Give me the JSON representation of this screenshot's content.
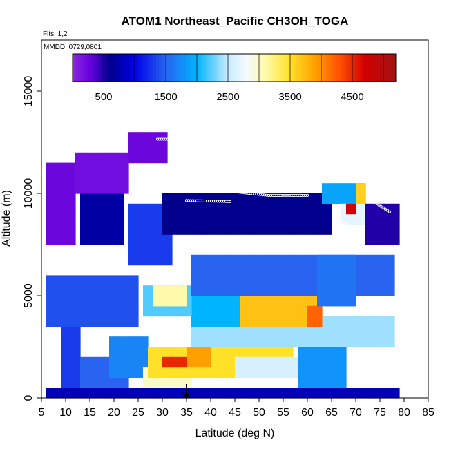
{
  "chart_data": {
    "type": "heatmap",
    "title": "ATOM1 Northeast_Pacific CH3OH_TOGA",
    "subtitle_flights": "Flts: 1,2",
    "subtitle_dates": "MMDD: 0729,0801",
    "xlabel": "Latitude (deg N)",
    "ylabel": "Altitude (m)",
    "xlim": [
      5,
      85
    ],
    "ylim": [
      0,
      17500
    ],
    "x_ticks": [
      5,
      10,
      15,
      20,
      25,
      30,
      35,
      40,
      45,
      50,
      55,
      60,
      65,
      70,
      75,
      80,
      85
    ],
    "y_ticks": [
      0,
      5000,
      10000,
      15000
    ],
    "colorbar": {
      "range": [
        0,
        5200
      ],
      "tick_values": [
        500,
        1500,
        2500,
        3500,
        4500
      ],
      "tick_labels": [
        "500",
        "1500",
        "2500",
        "3500",
        "4500"
      ],
      "placement": "top, inside plot"
    },
    "marker": {
      "latitude": 35,
      "symbol": "down-arrow"
    },
    "grid": false,
    "cell_size": {
      "dlat": 1,
      "dalt": 500
    },
    "regions": [
      {
        "lat": [
          6,
          79
        ],
        "alt": [
          0,
          500
        ],
        "value": 800
      },
      {
        "lat": [
          9,
          13
        ],
        "alt": [
          500,
          4500
        ],
        "value": 1300
      },
      {
        "lat": [
          13,
          23
        ],
        "alt": [
          500,
          2000
        ],
        "value": 1500
      },
      {
        "lat": [
          19,
          27
        ],
        "alt": [
          1000,
          3000
        ],
        "value": 1700
      },
      {
        "lat": [
          26,
          36
        ],
        "alt": [
          500,
          1500
        ],
        "value": 3000
      },
      {
        "lat": [
          27,
          57
        ],
        "alt": [
          1000,
          2500
        ],
        "value": 3500
      },
      {
        "lat": [
          30,
          35
        ],
        "alt": [
          1500,
          2000
        ],
        "value": 4500
      },
      {
        "lat": [
          35,
          40
        ],
        "alt": [
          1500,
          2500
        ],
        "value": 3900
      },
      {
        "lat": [
          45,
          58
        ],
        "alt": [
          1000,
          2000
        ],
        "value": 2600
      },
      {
        "lat": [
          58,
          68
        ],
        "alt": [
          500,
          2500
        ],
        "value": 1800
      },
      {
        "lat": [
          36,
          78
        ],
        "alt": [
          2500,
          4000
        ],
        "value": 2400
      },
      {
        "lat": [
          36,
          62
        ],
        "alt": [
          3500,
          5000
        ],
        "value": 2000
      },
      {
        "lat": [
          46,
          62
        ],
        "alt": [
          3500,
          5000
        ],
        "value": 3700
      },
      {
        "lat": [
          60,
          63
        ],
        "alt": [
          3500,
          4500
        ],
        "value": 4200
      },
      {
        "lat": [
          26,
          36
        ],
        "alt": [
          4000,
          5500
        ],
        "value": 2200
      },
      {
        "lat": [
          28,
          35
        ],
        "alt": [
          4500,
          5500
        ],
        "value": 3100
      },
      {
        "lat": [
          6,
          25
        ],
        "alt": [
          3500,
          6000
        ],
        "value": 1400
      },
      {
        "lat": [
          36,
          78
        ],
        "alt": [
          5000,
          7000
        ],
        "value": 1500
      },
      {
        "lat": [
          62,
          70
        ],
        "alt": [
          4500,
          7000
        ],
        "value": 1600
      },
      {
        "lat": [
          23,
          32
        ],
        "alt": [
          6500,
          9500
        ],
        "value": 1300
      },
      {
        "lat": [
          13,
          22
        ],
        "alt": [
          7500,
          10500
        ],
        "value": 700
      },
      {
        "lat": [
          6,
          12
        ],
        "alt": [
          7500,
          11500
        ],
        "value": 250
      },
      {
        "lat": [
          12,
          23
        ],
        "alt": [
          10000,
          12000
        ],
        "value": 200
      },
      {
        "lat": [
          23,
          31
        ],
        "alt": [
          11500,
          12800
        ],
        "value": 250
      },
      {
        "lat": [
          30,
          65
        ],
        "alt": [
          8000,
          10000
        ],
        "value": 600
      },
      {
        "lat": [
          63,
          72
        ],
        "alt": [
          9500,
          10500
        ],
        "value": 1900
      },
      {
        "lat": [
          67,
          72
        ],
        "alt": [
          8500,
          9500
        ],
        "value": 2700
      },
      {
        "lat": [
          68,
          70
        ],
        "alt": [
          9000,
          9500
        ],
        "value": 4700
      },
      {
        "lat": [
          70,
          72
        ],
        "alt": [
          9500,
          10500
        ],
        "value": 3600
      },
      {
        "lat": [
          72,
          79
        ],
        "alt": [
          7500,
          9500
        ],
        "value": 500
      }
    ],
    "flight_tracks": [
      {
        "lat": [
          29,
          34
        ],
        "alt": [
          12650,
          12650
        ]
      },
      {
        "lat": [
          44,
          52,
          60
        ],
        "alt": [
          10100,
          9900,
          9900
        ]
      },
      {
        "lat": [
          35,
          44
        ],
        "alt": [
          9650,
          9600
        ]
      },
      {
        "lat": [
          30,
          33
        ],
        "alt": [
          10450,
          10450
        ]
      },
      {
        "lat": [
          73,
          77
        ],
        "alt": [
          9700,
          9100
        ]
      },
      {
        "lat": [
          67,
          71
        ],
        "alt": [
          8600,
          8100
        ]
      }
    ]
  }
}
